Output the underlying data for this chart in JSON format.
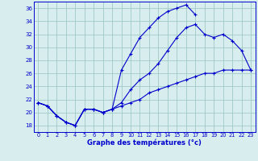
{
  "line1": {
    "x": [
      0,
      1,
      2,
      3,
      4,
      5,
      6,
      7,
      8,
      9,
      10,
      11,
      12,
      13,
      14,
      15,
      16,
      17
    ],
    "y": [
      21.5,
      21.0,
      19.5,
      18.5,
      18.0,
      20.5,
      20.5,
      20.0,
      20.5,
      26.5,
      29.0,
      31.5,
      33.0,
      34.5,
      35.5,
      36.0,
      36.5,
      35.0
    ]
  },
  "line2": {
    "x": [
      0,
      1,
      2,
      3,
      4,
      5,
      6,
      7,
      8,
      9,
      10,
      11,
      12,
      13,
      14,
      15,
      16,
      17,
      18,
      19,
      20,
      21,
      22,
      23
    ],
    "y": [
      21.5,
      21.0,
      19.5,
      18.5,
      18.0,
      20.5,
      20.5,
      20.0,
      20.5,
      21.5,
      23.5,
      25.0,
      26.0,
      27.5,
      29.5,
      31.5,
      33.0,
      33.5,
      32.0,
      31.5,
      32.0,
      31.0,
      29.5,
      26.5
    ]
  },
  "line3": {
    "x": [
      0,
      1,
      2,
      3,
      4,
      5,
      6,
      7,
      8,
      9,
      10,
      11,
      12,
      13,
      14,
      15,
      16,
      17,
      18,
      19,
      20,
      21,
      22,
      23
    ],
    "y": [
      21.5,
      21.0,
      19.5,
      18.5,
      18.0,
      20.5,
      20.5,
      20.0,
      20.5,
      21.0,
      21.5,
      22.0,
      23.0,
      23.5,
      24.0,
      24.5,
      25.0,
      25.5,
      26.0,
      26.0,
      26.5,
      26.5,
      26.5,
      26.5
    ]
  },
  "color": "#0000cc",
  "bg_color": "#d8eeee",
  "grid_color": "#a0c8c8",
  "xlabel": "Graphe des températures (°c)",
  "xlim": [
    -0.5,
    23.5
  ],
  "ylim": [
    17,
    37
  ],
  "yticks": [
    18,
    20,
    22,
    24,
    26,
    28,
    30,
    32,
    34,
    36
  ],
  "xticks": [
    0,
    1,
    2,
    3,
    4,
    5,
    6,
    7,
    8,
    9,
    10,
    11,
    12,
    13,
    14,
    15,
    16,
    17,
    18,
    19,
    20,
    21,
    22,
    23
  ]
}
